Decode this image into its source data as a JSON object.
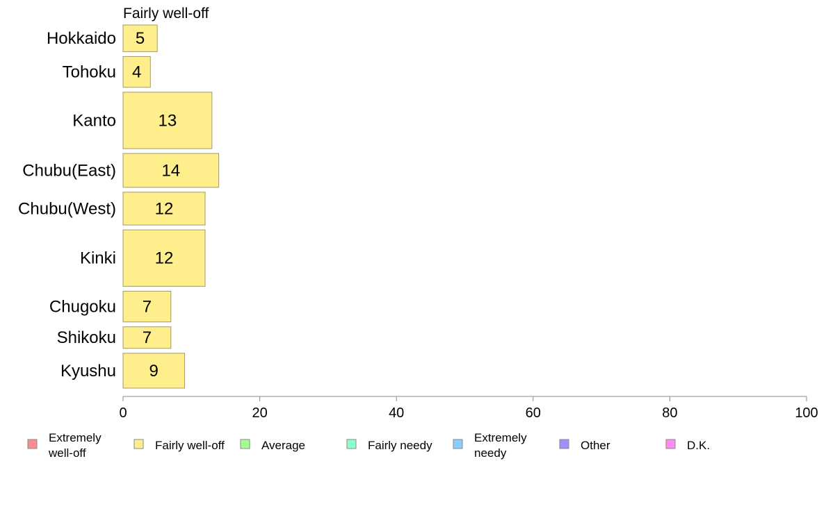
{
  "chart_data": {
    "type": "bar",
    "orientation": "horizontal",
    "panel_label": "Fairly well-off",
    "categories": [
      "Hokkaido",
      "Tohoku",
      "Kanto",
      "Chubu(East)",
      "Chubu(West)",
      "Kinki",
      "Chugoku",
      "Shikoku",
      "Kyushu"
    ],
    "values": [
      5,
      4,
      13,
      14,
      12,
      12,
      7,
      7,
      9
    ],
    "data_labels": [
      "5",
      "4",
      "13",
      "14",
      "12",
      "12",
      "7",
      "7",
      "9"
    ],
    "bar_thickness_relative": [
      0.52,
      0.6,
      1.1,
      0.66,
      0.64,
      1.1,
      0.6,
      0.42,
      0.68
    ],
    "xlim": [
      0,
      100
    ],
    "x_ticks": [
      0,
      20,
      40,
      60,
      80,
      100
    ],
    "x_tick_labels": [
      "0",
      "20",
      "40",
      "60",
      "80",
      "100"
    ],
    "grid": false,
    "bar_color": "#FFEE8C",
    "bar_stroke": "#A09A6E",
    "legend_placement": "bottom",
    "legend": [
      {
        "label_lines": [
          "Extremely",
          "well-off"
        ],
        "color": "#FF8C8C"
      },
      {
        "label_lines": [
          "Fairly well-off"
        ],
        "color": "#FFEE8C"
      },
      {
        "label_lines": [
          "Average"
        ],
        "color": "#A6FF8C"
      },
      {
        "label_lines": [
          "Fairly needy"
        ],
        "color": "#8CFFCC"
      },
      {
        "label_lines": [
          "Extremely",
          "needy"
        ],
        "color": "#8CCCFF"
      },
      {
        "label_lines": [
          "Other"
        ],
        "color": "#A68CFF"
      },
      {
        "label_lines": [
          "D.K."
        ],
        "color": "#FF8CEE"
      }
    ]
  }
}
